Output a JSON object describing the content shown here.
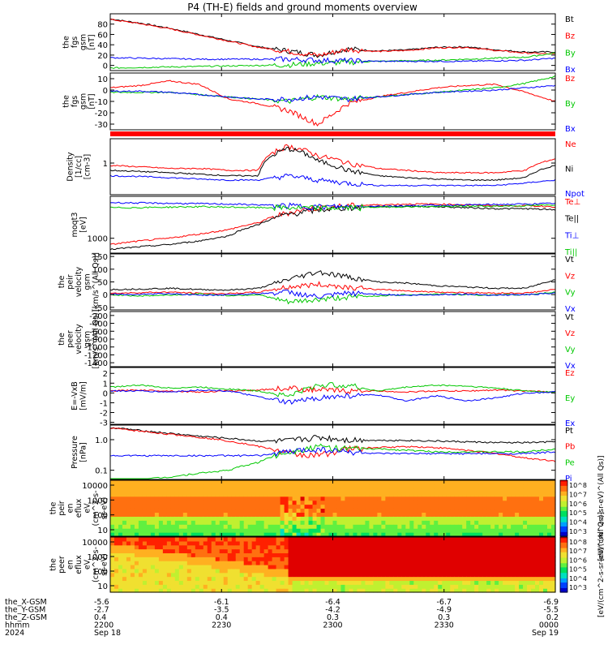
{
  "title": "P4 (TH-E) fields and ground moments overview",
  "colors": {
    "black": "#000000",
    "red": "#ff0000",
    "green": "#00c800",
    "blue": "#0000ff"
  },
  "chart_data": [
    {
      "type": "line",
      "panel": "fgs-gsm-total",
      "ylabel": [
        "the",
        "fgs",
        "gsm",
        "[nT]"
      ],
      "yticks": [
        "0",
        "20",
        "40",
        "60",
        "80"
      ],
      "ylim": [
        -10,
        100
      ],
      "series": [
        {
          "name": "Bt",
          "color": "black",
          "values": [
            90,
            82,
            72,
            60,
            48,
            36,
            28,
            20,
            32,
            28,
            30,
            35,
            36,
            30,
            26,
            26
          ]
        },
        {
          "name": "Bz",
          "color": "red",
          "values": [
            89,
            81,
            71,
            59,
            47,
            35,
            27,
            19,
            31,
            27,
            29,
            34,
            35,
            29,
            24,
            22
          ]
        },
        {
          "name": "By",
          "color": "green",
          "values": [
            -5,
            -4,
            -3,
            -2,
            -1,
            0,
            1,
            4,
            6,
            8,
            9,
            10,
            12,
            14,
            16,
            24
          ]
        },
        {
          "name": "Bx",
          "color": "blue",
          "values": [
            15,
            14,
            13,
            12,
            12,
            12,
            12,
            10,
            9,
            8,
            8,
            8,
            8,
            9,
            10,
            14
          ]
        }
      ]
    },
    {
      "type": "line",
      "panel": "fgs-gsm-components",
      "ylabel": [
        "the",
        "fgs",
        "gsm",
        "[nT]"
      ],
      "yticks": [
        "-30",
        "-20",
        "-10",
        "0",
        "10"
      ],
      "ylim": [
        -35,
        15
      ],
      "series": [
        {
          "name": "Bz",
          "color": "red",
          "values": [
            2,
            4,
            8,
            5,
            -8,
            -12,
            -18,
            -30,
            -12,
            -6,
            -2,
            2,
            4,
            5,
            -2,
            -10
          ]
        },
        {
          "name": "By",
          "color": "green",
          "values": [
            -2,
            -2,
            -2,
            -4,
            -6,
            -8,
            -10,
            -6,
            -8,
            -6,
            -4,
            -2,
            0,
            2,
            6,
            12
          ]
        },
        {
          "name": "Bx",
          "color": "blue",
          "values": [
            -1,
            -1,
            -2,
            -4,
            -6,
            -8,
            -8,
            -6,
            -8,
            -6,
            -4,
            -2,
            -1,
            0,
            2,
            4
          ]
        }
      ]
    },
    {
      "type": "line",
      "panel": "density",
      "ylabel": [
        "Density",
        "[1/cc]",
        "[cm-3]"
      ],
      "yticks": [
        "1"
      ],
      "ylim": [
        0.05,
        10
      ],
      "log": true,
      "series": [
        {
          "name": "Ne",
          "color": "red",
          "values": [
            0.8,
            0.7,
            0.6,
            0.6,
            0.5,
            0.5,
            5,
            2,
            1,
            0.6,
            0.5,
            0.4,
            0.4,
            0.4,
            0.5,
            1.5
          ]
        },
        {
          "name": "Ni",
          "color": "black",
          "values": [
            0.5,
            0.45,
            0.4,
            0.35,
            0.3,
            0.3,
            4,
            1.2,
            0.5,
            0.3,
            0.25,
            0.22,
            0.2,
            0.2,
            0.25,
            0.8
          ]
        },
        {
          "name": "Npot",
          "color": "blue",
          "values": [
            0.3,
            0.28,
            0.25,
            0.22,
            0.2,
            0.2,
            0.3,
            0.2,
            0.15,
            0.12,
            0.12,
            0.12,
            0.12,
            0.12,
            0.15,
            0.2
          ]
        }
      ]
    },
    {
      "type": "line",
      "panel": "temperature",
      "ylabel": [
        "moqt3",
        "[eV]"
      ],
      "yticks": [
        "1000"
      ],
      "ylim": [
        300,
        30000
      ],
      "log": true,
      "series": [
        {
          "name": "Te⊥",
          "color": "red",
          "values": [
            600,
            800,
            1000,
            1400,
            2000,
            3500,
            8000,
            12000,
            14000,
            15000,
            16000,
            16000,
            15000,
            14000,
            14000,
            13000
          ]
        },
        {
          "name": "Te||",
          "color": "black",
          "values": [
            400,
            500,
            600,
            800,
            1200,
            3000,
            7000,
            10000,
            12000,
            13000,
            13500,
            13000,
            12000,
            11000,
            11000,
            10000
          ]
        },
        {
          "name": "Ti⊥",
          "color": "blue",
          "values": [
            18000,
            17500,
            17000,
            16500,
            16000,
            15000,
            14000,
            13000,
            13000,
            13500,
            14000,
            14500,
            15000,
            15500,
            16000,
            17000
          ]
        },
        {
          "name": "Ti||",
          "color": "green",
          "values": [
            12000,
            12000,
            12500,
            13000,
            12500,
            12000,
            12000,
            11500,
            12000,
            12500,
            13000,
            13000,
            13500,
            13500,
            14000,
            15000
          ]
        }
      ]
    },
    {
      "type": "line",
      "panel": "peir-velocity",
      "ylabel": [
        "the",
        "peir",
        "velocity",
        "gsm",
        "[km/s^(All Qs)]"
      ],
      "yticks": [
        "-50",
        "0",
        "50",
        "100",
        "150"
      ],
      "ylim": [
        -60,
        160
      ],
      "series": [
        {
          "name": "Vt",
          "color": "black",
          "values": [
            20,
            22,
            25,
            20,
            18,
            25,
            60,
            90,
            70,
            50,
            45,
            35,
            30,
            25,
            25,
            60
          ]
        },
        {
          "name": "Vz",
          "color": "red",
          "values": [
            5,
            8,
            10,
            5,
            4,
            10,
            30,
            40,
            30,
            20,
            15,
            10,
            8,
            6,
            6,
            20
          ]
        },
        {
          "name": "Vy",
          "color": "green",
          "values": [
            0,
            -5,
            -2,
            3,
            -4,
            0,
            -30,
            -20,
            -10,
            -5,
            0,
            2,
            0,
            -2,
            0,
            10
          ]
        },
        {
          "name": "Vx",
          "color": "blue",
          "values": [
            2,
            0,
            5,
            -3,
            0,
            4,
            10,
            -10,
            5,
            2,
            -3,
            0,
            2,
            -2,
            0,
            5
          ]
        }
      ]
    },
    {
      "type": "line",
      "panel": "peer-velocity",
      "ylabel": [
        "the",
        "peer",
        "velocity",
        "gsm",
        "[km/s^(All Qs)]"
      ],
      "yticks": [
        "-1400",
        "-1200",
        "-1000",
        "-800",
        "-600",
        "-400",
        "-200"
      ],
      "ylim": [
        -1500,
        -100
      ],
      "series": [
        {
          "name": "Vt",
          "color": "black",
          "values": []
        },
        {
          "name": "Vz",
          "color": "red",
          "values": []
        },
        {
          "name": "Vy",
          "color": "green",
          "values": []
        },
        {
          "name": "Vx",
          "color": "blue",
          "values": []
        }
      ]
    },
    {
      "type": "line",
      "panel": "efield",
      "ylabel": [
        "E=-VxB",
        "[mV/m]"
      ],
      "yticks": [
        "-3",
        "-2",
        "-1",
        "0",
        "1",
        "2"
      ],
      "ylim": [
        -3.2,
        2.6
      ],
      "series": [
        {
          "name": "Ez",
          "color": "red",
          "values": [
            0.2,
            0.3,
            0.2,
            0.1,
            0.2,
            0.3,
            0.5,
            0.3,
            0.2,
            0.2,
            0.1,
            0.2,
            0.2,
            0.3,
            0.2,
            0.1
          ]
        },
        {
          "name": "Ey",
          "color": "green",
          "values": [
            0.6,
            0.8,
            0.5,
            0.6,
            0.4,
            0.2,
            -0.3,
            0.8,
            0.8,
            0.2,
            0.6,
            0.8,
            0.7,
            0.5,
            0.2,
            0.1
          ]
        },
        {
          "name": "Ex",
          "color": "blue",
          "values": [
            0.2,
            0.2,
            0.1,
            0.3,
            0.2,
            -0.4,
            -1,
            -0.5,
            -0.3,
            -0.2,
            -0.8,
            -0.3,
            -0.8,
            -0.5,
            0,
            0.1
          ]
        }
      ]
    },
    {
      "type": "line",
      "panel": "pressure",
      "ylabel": [
        "Pressure",
        "[nPa]"
      ],
      "yticks": [
        "0.1",
        "1.0"
      ],
      "ylim": [
        0.05,
        3
      ],
      "log": true,
      "series": [
        {
          "name": "Pt",
          "color": "black",
          "values": [
            2.5,
            2.0,
            1.6,
            1.3,
            1.1,
            0.9,
            0.9,
            1.2,
            1.0,
            0.95,
            0.95,
            0.9,
            0.85,
            0.8,
            0.8,
            0.85
          ]
        },
        {
          "name": "Pb",
          "color": "red",
          "values": [
            2.4,
            1.9,
            1.5,
            1.2,
            0.9,
            0.6,
            0.35,
            0.3,
            0.5,
            0.55,
            0.6,
            0.55,
            0.45,
            0.35,
            0.25,
            0.2
          ]
        },
        {
          "name": "Pe",
          "color": "green",
          "values": [
            0.04,
            0.05,
            0.06,
            0.08,
            0.1,
            0.18,
            0.4,
            0.6,
            0.5,
            0.5,
            0.45,
            0.4,
            0.4,
            0.4,
            0.4,
            0.5
          ]
        },
        {
          "name": "Pi",
          "color": "blue",
          "values": [
            0.3,
            0.3,
            0.3,
            0.3,
            0.3,
            0.3,
            0.4,
            0.5,
            0.4,
            0.35,
            0.35,
            0.35,
            0.35,
            0.35,
            0.35,
            0.4
          ]
        }
      ]
    },
    {
      "type": "heatmap",
      "panel": "peir-eflux",
      "ylabel": [
        "the",
        "peir",
        "en",
        "eflux",
        "eV",
        "(cm^2-s-",
        "sr-eV)"
      ],
      "yticks": [
        "10",
        "100",
        "1000",
        "10000"
      ],
      "colorbar": {
        "label": "[eV/(cm^2-s-sr-eV)^(All Qs)]",
        "ticks": [
          "10^8",
          "10^7",
          "10^6",
          "10^5",
          "10^4",
          "10^3"
        ]
      }
    },
    {
      "type": "heatmap",
      "panel": "peer-eflux",
      "ylabel": [
        "the",
        "peer",
        "en",
        "eflux",
        "eV",
        "(cm^2-s-",
        "sr-eV)"
      ],
      "yticks": [
        "10",
        "100",
        "1000",
        "10000"
      ],
      "colorbar": {
        "label": "[eV/(cm^2-s-sr-eV)^(All Qs)]",
        "ticks": [
          "10^8",
          "10^7",
          "10^6",
          "10^5",
          "10^4",
          "10^3"
        ]
      }
    }
  ],
  "x_axis": {
    "rows": [
      {
        "label": "the_X-GSM",
        "values": [
          "-5.6",
          "-6.1",
          "-6.4",
          "-6.7",
          "-6.9"
        ]
      },
      {
        "label": "the_Y-GSM",
        "values": [
          "-2.7",
          "-3.5",
          "-4.2",
          "-4.9",
          "-5.5"
        ]
      },
      {
        "label": "the_Z-GSM",
        "values": [
          "0.4",
          "0.4",
          "0.3",
          "0.3",
          "0.2"
        ]
      },
      {
        "label": "hhmm",
        "values": [
          "2200",
          "2230",
          "2300",
          "2330",
          "0000"
        ]
      },
      {
        "label": "2024",
        "values": [
          "Sep 18",
          "",
          "",
          "",
          "Sep 19"
        ]
      }
    ]
  }
}
